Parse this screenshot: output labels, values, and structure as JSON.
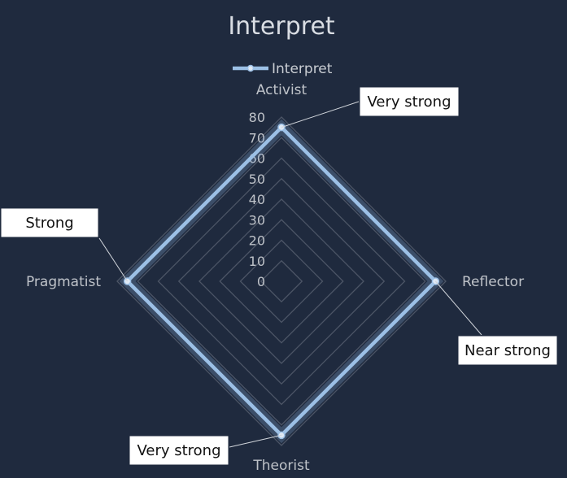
{
  "chart_data": {
    "type": "radar",
    "title": "Interpret",
    "legend": {
      "position": "top",
      "entries": [
        "Interpret"
      ]
    },
    "categories": [
      "Activist",
      "Reflector",
      "Theorist",
      "Pragmatist"
    ],
    "r_ticks": [
      "0",
      "10",
      "20",
      "30",
      "40",
      "50",
      "60",
      "70",
      "80"
    ],
    "rlim": [
      0,
      80
    ],
    "grid": true,
    "series": [
      {
        "name": "Interpret",
        "values": [
          75,
          75,
          75,
          75
        ],
        "color": "#9cc0e6"
      }
    ],
    "annotations": [
      "Very strong",
      "Near strong",
      "Very strong",
      "Strong"
    ]
  }
}
